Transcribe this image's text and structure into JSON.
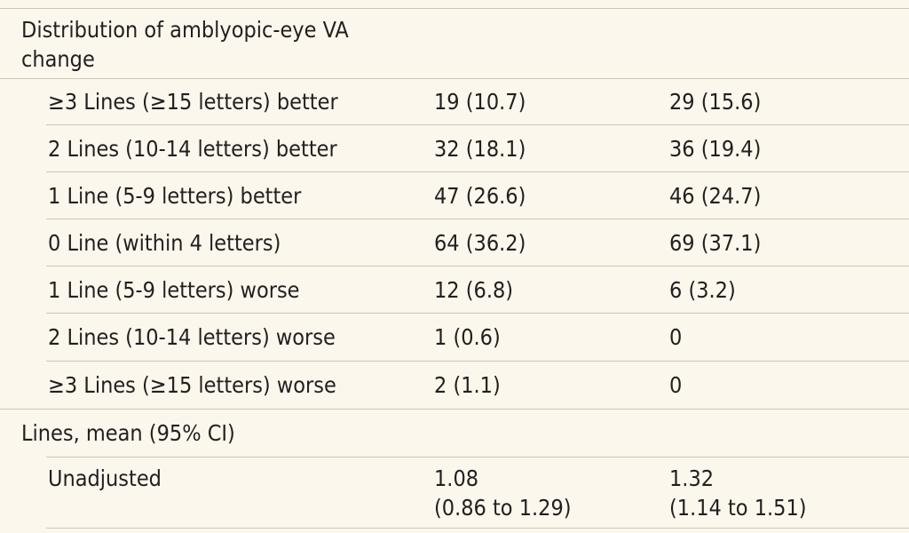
{
  "sections": [
    {
      "heading": "Distribution of amblyopic-eye VA change",
      "heading_line1": "Distribution of amblyopic-eye VA",
      "heading_line2": "change",
      "rows": [
        {
          "label": "≥3 Lines (≥15 letters) better",
          "a": "19 (10.7)",
          "b": "29 (15.6)"
        },
        {
          "label": "2 Lines (10-14 letters) better",
          "a": "32 (18.1)",
          "b": "36 (19.4)"
        },
        {
          "label": "1 Line (5-9 letters) better",
          "a": "47 (26.6)",
          "b": "46 (24.7)"
        },
        {
          "label": "0 Line (within 4 letters)",
          "a": "64 (36.2)",
          "b": "69 (37.1)"
        },
        {
          "label": "1 Line (5-9 letters) worse",
          "a": "12 (6.8)",
          "b": "6 (3.2)"
        },
        {
          "label": "2 Lines (10-14 letters) worse",
          "a": "1 (0.6)",
          "b": "0"
        },
        {
          "label": "≥3 Lines (≥15 letters) worse",
          "a": "2 (1.1)",
          "b": "0"
        }
      ]
    },
    {
      "heading": "Lines, mean (95% CI)",
      "rows": [
        {
          "label": "Unadjusted",
          "a_line1": "1.08",
          "a_line2": "(0.86 to 1.29)",
          "b_line1": "1.32",
          "b_line2": "(1.14 to 1.51)"
        }
      ]
    }
  ]
}
